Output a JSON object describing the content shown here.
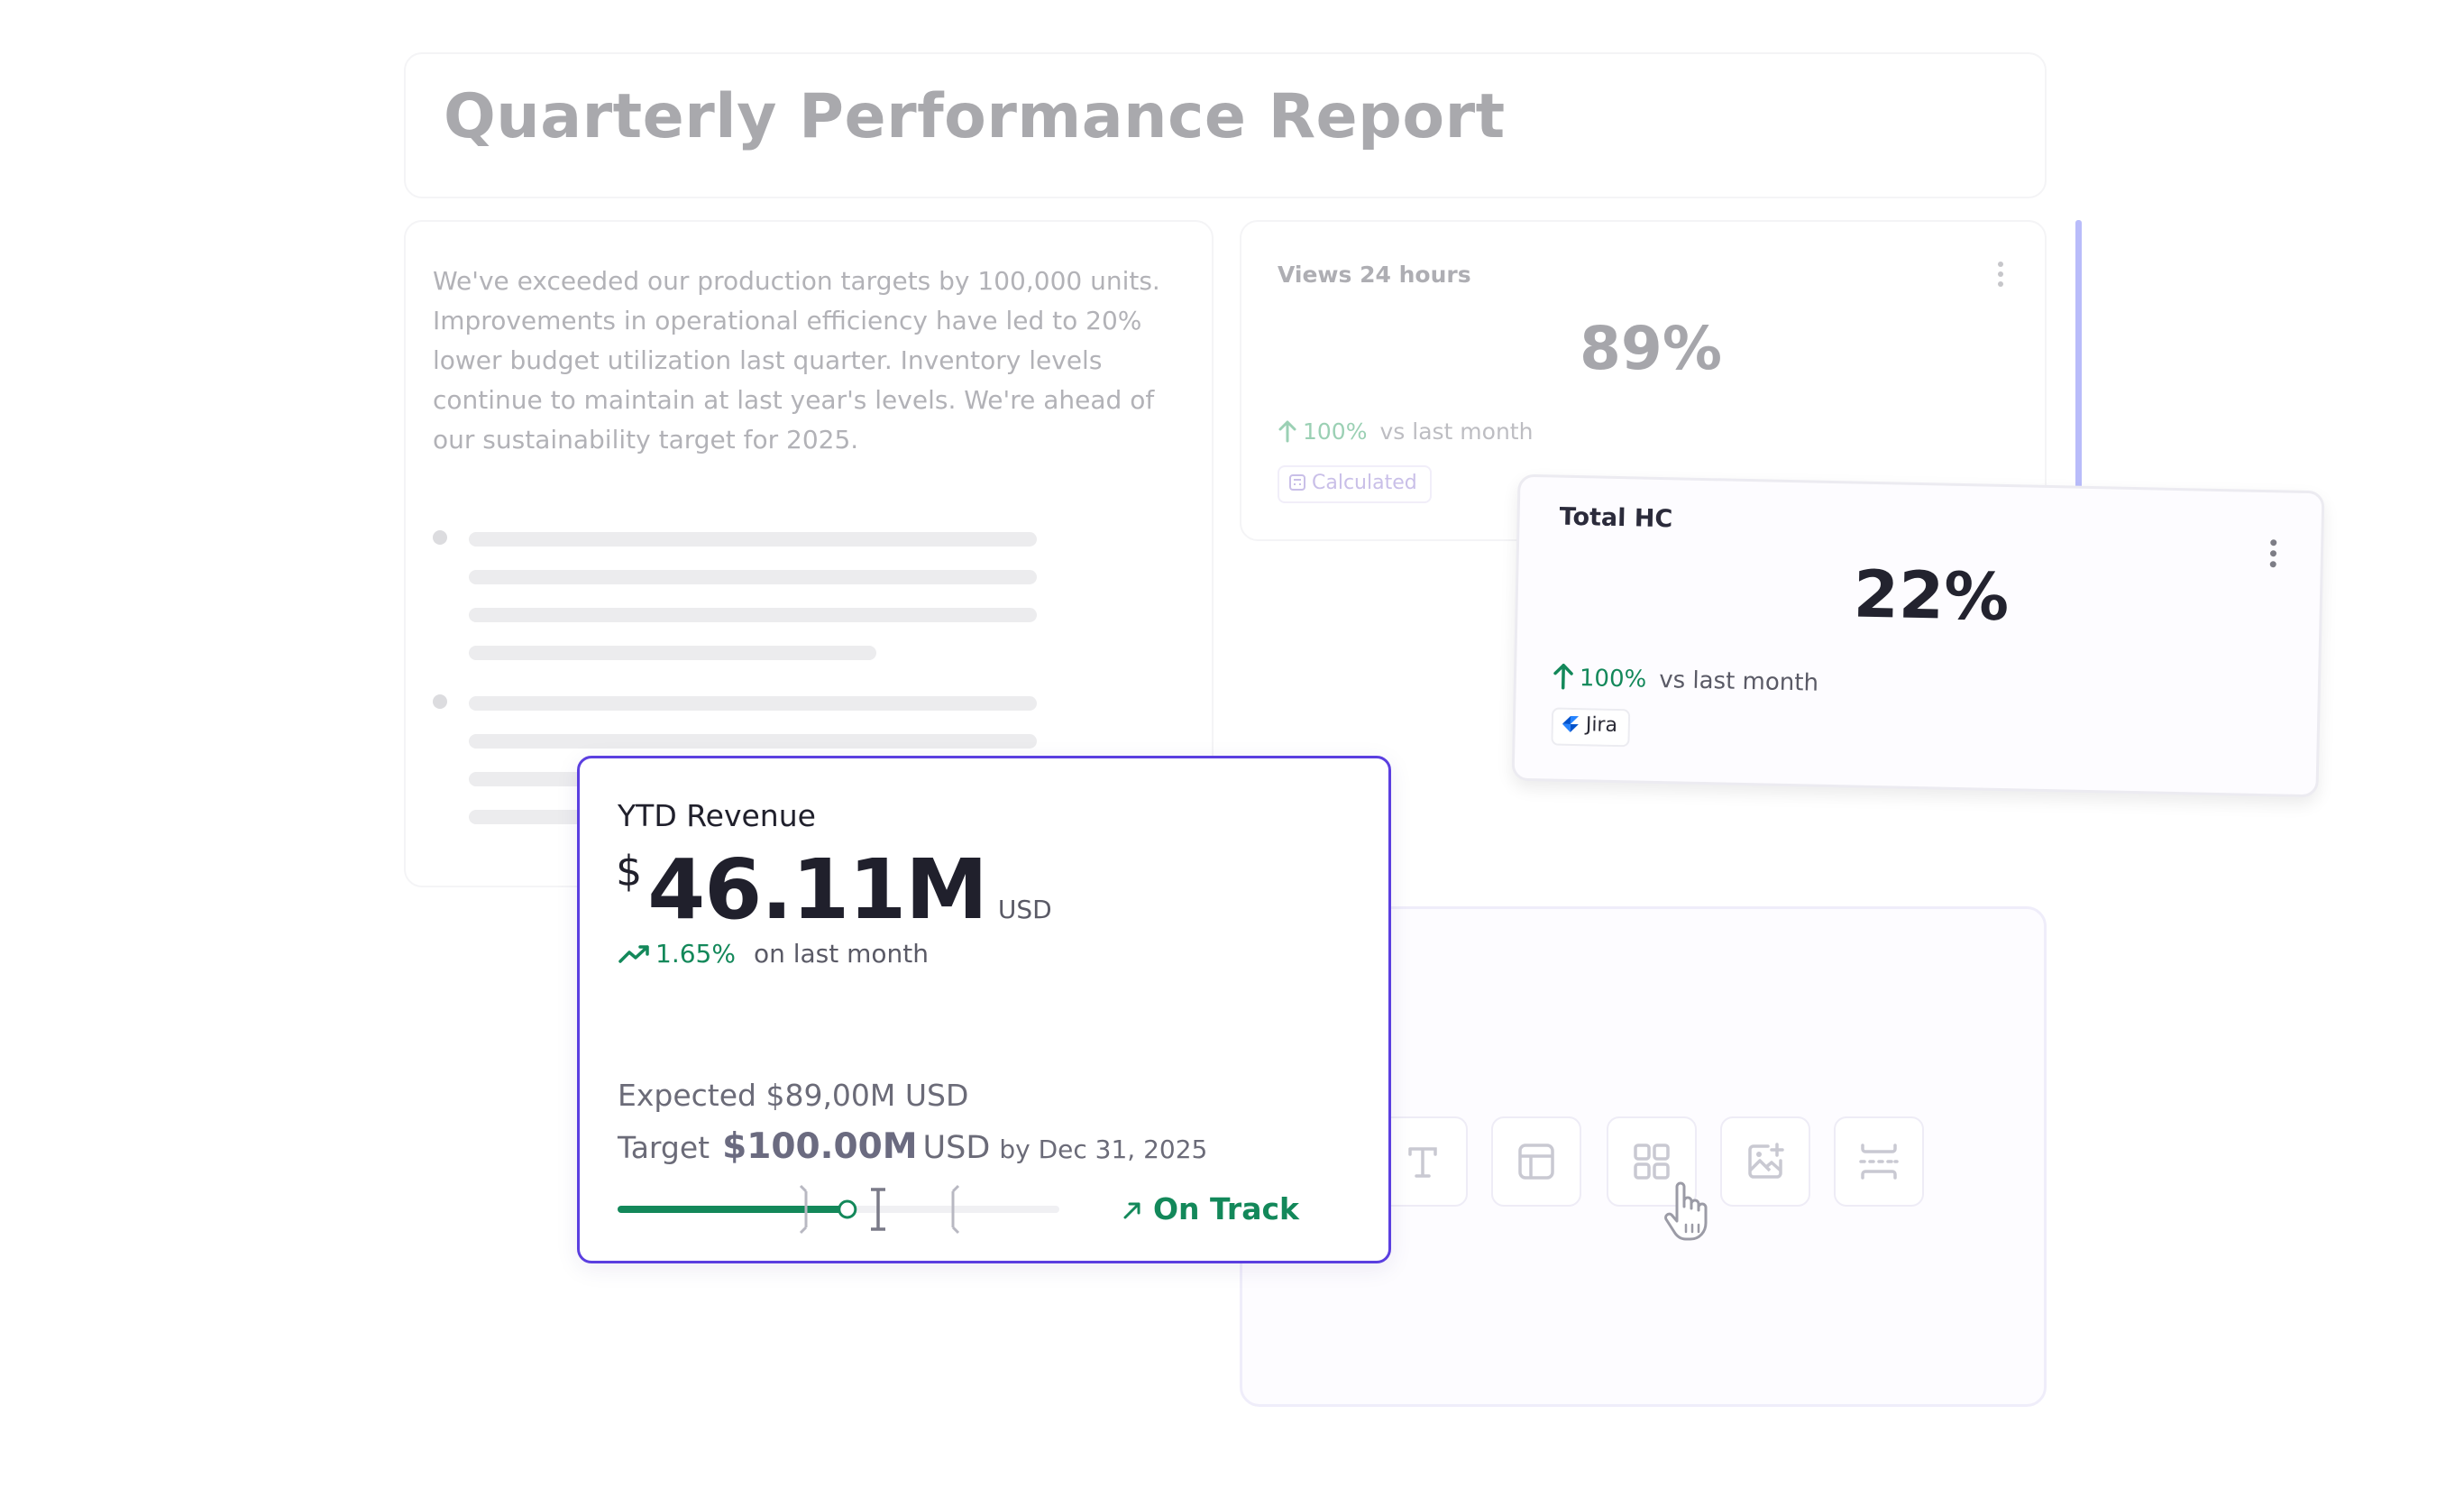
{
  "report": {
    "title": "Quarterly Performance Report"
  },
  "summary": {
    "paragraph": "We've exceeded our production targets by 100,000 units. Improvements in operational efficiency have led to 20% lower budget utilization last quarter. Inventory levels continue to maintain at last year's levels. We're ahead of our sustainability target for 2025."
  },
  "views_card": {
    "title": "Views 24 hours",
    "value": "89%",
    "delta": "100%",
    "delta_label": "vs last month",
    "badge": "Calculated"
  },
  "hc_card": {
    "title": "Total HC",
    "value": "22%",
    "delta": "100%",
    "delta_label": "vs last month",
    "badge": "Jira"
  },
  "ytd_card": {
    "title": "YTD Revenue",
    "currency": "$",
    "value": "46.11M",
    "unit": "USD",
    "delta": "1.65%",
    "delta_label": "on last month",
    "expected": "Expected $89,00M USD",
    "target_label": "Target",
    "target_value": "$100.00M",
    "target_unit": "USD",
    "target_by": "by Dec 31, 2025",
    "progress": 0.52,
    "status": "On Track"
  },
  "toolbar": {
    "tools": [
      "text-tool-icon",
      "layout-tool-icon",
      "grid-tool-icon",
      "add-image-icon",
      "divider-tool-icon"
    ]
  },
  "colors": {
    "accent": "#5b3fe0",
    "positive": "#13885a",
    "faded_text": "#b2b2b7"
  }
}
